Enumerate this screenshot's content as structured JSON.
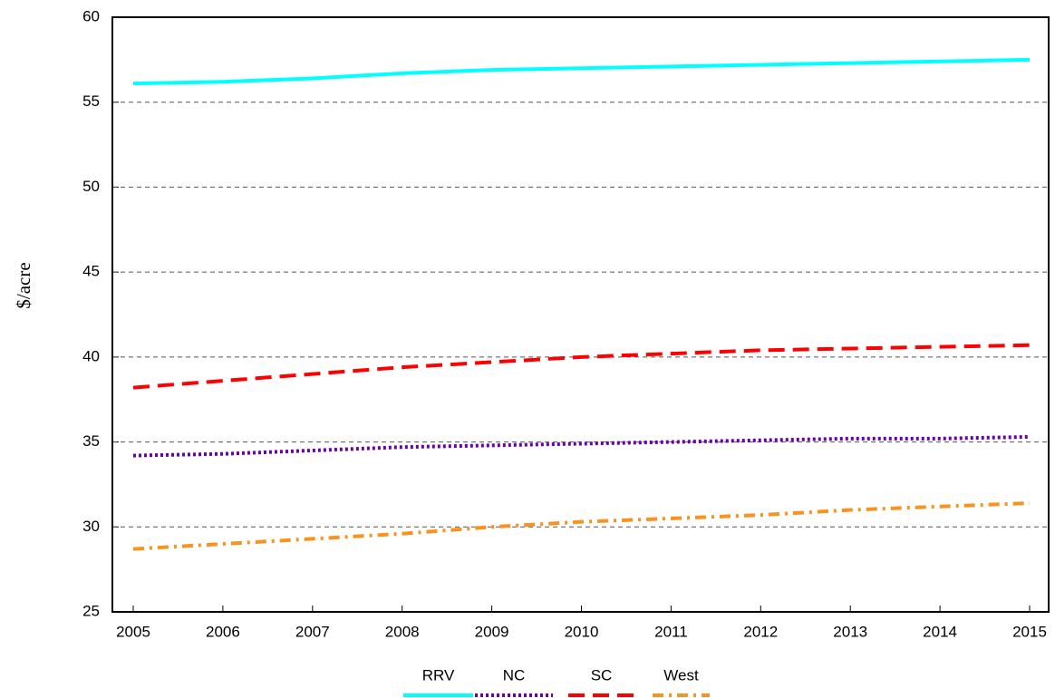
{
  "chart_data": {
    "type": "line",
    "y_label": "$/acre",
    "categories": [
      "2005",
      "2006",
      "2007",
      "2008",
      "2009",
      "2010",
      "2011",
      "2012",
      "2013",
      "2014",
      "2015"
    ],
    "series": [
      {
        "name": "RRV",
        "color": "#00ffff",
        "style": "solid",
        "values": [
          56.1,
          56.2,
          56.4,
          56.7,
          56.9,
          57.0,
          57.1,
          57.2,
          57.3,
          57.4,
          57.5
        ]
      },
      {
        "name": "NC",
        "color": "#6a00a8",
        "style": "dotted",
        "values": [
          34.2,
          34.3,
          34.5,
          34.7,
          34.8,
          34.9,
          35.0,
          35.1,
          35.2,
          35.2,
          35.3
        ]
      },
      {
        "name": "SC",
        "color": "#ff0000",
        "style": "dashed",
        "values": [
          38.2,
          38.6,
          39.0,
          39.4,
          39.7,
          40.0,
          40.2,
          40.4,
          40.5,
          40.6,
          40.7
        ]
      },
      {
        "name": "West",
        "color": "#f7931e",
        "style": "dashdot",
        "values": [
          28.7,
          29.0,
          29.3,
          29.6,
          30.0,
          30.3,
          30.5,
          30.7,
          31.0,
          31.2,
          31.4
        ]
      }
    ],
    "ylim": [
      25,
      60
    ],
    "yticks": [
      25,
      30,
      35,
      40,
      45,
      50,
      55,
      60
    ],
    "grid": true,
    "legend": "bottom"
  }
}
